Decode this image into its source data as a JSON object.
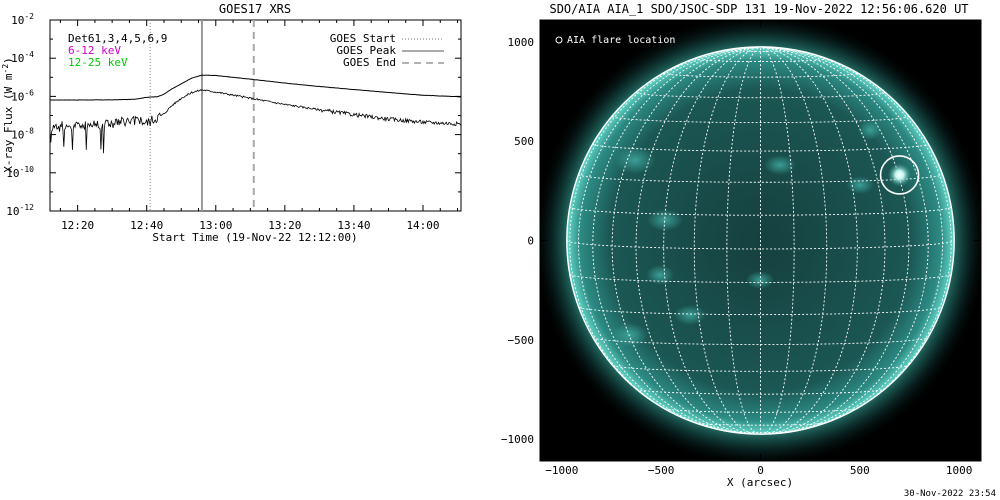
{
  "chart_data": [
    {
      "type": "line",
      "title": "GOES17 XRS",
      "xlabel": "Start Time (19-Nov-22 12:12:00)",
      "ylabel": "X-ray Flux (W m",
      "ylabel_sup": "-2",
      "y_scale": "log",
      "ylim": [
        1e-12,
        0.01
      ],
      "xlim": [
        "12:12",
        "14:11"
      ],
      "x_ticks": [
        "12:20",
        "12:40",
        "13:00",
        "13:20",
        "13:40",
        "14:00"
      ],
      "y_ticks": [
        {
          "value": 0.01,
          "base": "10",
          "exp": "-2"
        },
        {
          "value": 0.0001,
          "base": "10",
          "exp": "-4"
        },
        {
          "value": 1e-06,
          "base": "10",
          "exp": "-6"
        },
        {
          "value": 1e-08,
          "base": "10",
          "exp": "-8"
        },
        {
          "value": 1e-10,
          "base": "10",
          "exp": "-10"
        },
        {
          "value": 1e-12,
          "base": "10",
          "exp": "-12"
        }
      ],
      "legend_left": [
        {
          "text": "Det61,3,4,5,6,9",
          "color": "#000000"
        },
        {
          "text": "6-12 keV",
          "color": "#cc00cc"
        },
        {
          "text": "12-25 keV",
          "color": "#00cc00"
        }
      ],
      "legend_right": [
        {
          "text": "GOES Start",
          "style": "dotted"
        },
        {
          "text": "GOES Peak",
          "style": "solid"
        },
        {
          "text": "GOES End",
          "style": "dashed"
        }
      ],
      "markers": {
        "start": "12:41",
        "peak": "12:56",
        "end": "13:11"
      },
      "series": [
        {
          "name": "",
          "x": [
            "12:12",
            "12:20",
            "12:30",
            "12:36",
            "12:38",
            "12:40",
            "12:43",
            "12:45",
            "12:47",
            "12:50",
            "12:53",
            "12:56",
            "13:00",
            "13:10",
            "13:20",
            "13:30",
            "13:40",
            "13:50",
            "14:00",
            "14:11"
          ],
          "y": [
            6.5e-07,
            6.5e-07,
            6.6e-07,
            7e-07,
            7.8e-07,
            9e-07,
            9.6e-07,
            1.3e-06,
            2.3e-06,
            4.5e-06,
            9e-06,
            1.3e-05,
            1.25e-05,
            8e-06,
            5e-06,
            3.3e-06,
            2.3e-06,
            1.6e-06,
            1.15e-06,
            9.5e-07
          ]
        },
        {
          "name": "",
          "x": [
            "12:12",
            "12:20",
            "12:30",
            "12:36",
            "12:38",
            "12:40",
            "12:43",
            "12:45",
            "12:47",
            "12:50",
            "12:53",
            "12:56",
            "13:00",
            "13:10",
            "13:20",
            "13:30",
            "13:40",
            "13:50",
            "14:00",
            "14:11"
          ],
          "y": [
            2.5e-08,
            3e-08,
            4e-08,
            5e-08,
            6e-08,
            4e-08,
            8e-08,
            1.2e-07,
            3e-07,
            8e-07,
            1.6e-06,
            2.2e-06,
            1.7e-06,
            8e-07,
            3.8e-07,
            2e-07,
            1.1e-07,
            6.5e-08,
            4.5e-08,
            3.6e-08
          ]
        }
      ]
    },
    {
      "type": "other",
      "title": "SDO/AIA AIA_1 SDO/JSOC-SDP 131 19-Nov-2022 12:56:06.620 UT",
      "xlabel": "X (arcsec)",
      "ylabel": "",
      "xlim": [
        -1110,
        1110
      ],
      "ylim": [
        -1110,
        1110
      ],
      "x_ticks": [
        -1000,
        -500,
        0,
        500,
        1000
      ],
      "y_ticks": [
        -1000,
        -500,
        0,
        500,
        1000
      ],
      "x_tick_labels": [
        "−1000",
        "−500",
        "0",
        "500",
        "1000"
      ],
      "y_tick_labels": [
        "−1000",
        "−500",
        "0",
        "500",
        "1000"
      ],
      "legend": "O AIA flare location",
      "solar_radius_arcsec": 975,
      "flare_location": [
        700,
        330
      ],
      "disk_color": "#174f4d",
      "limb_color": "#5fd3c6",
      "grid": true
    }
  ],
  "footer": {
    "timestamp": "30-Nov-2022 23:54"
  }
}
